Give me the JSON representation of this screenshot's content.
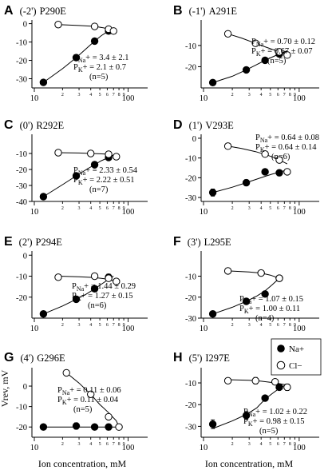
{
  "figure": {
    "xlabel": "Ion  concentration, mM",
    "ylabel": "Vrev, mV",
    "legend": [
      {
        "symbol": "filled-circle",
        "label": "Na+"
      },
      {
        "symbol": "open-circle",
        "label": "Cl−"
      }
    ]
  },
  "chart_data": [
    {
      "type": "scatter",
      "panel": "A",
      "position_label": "(-2')",
      "mutant": "P290E",
      "xscale": "log",
      "xlim": [
        10,
        100
      ],
      "ylim": [
        -35,
        2
      ],
      "yticks": [
        0,
        -10,
        -20,
        -30
      ],
      "xticks": [
        "10",
        "100"
      ],
      "y_zero_tick": true,
      "annotation": {
        "pna": "3.4 ± 2.1",
        "pk": "2.1 ± 0.7",
        "n": "(n=5)"
      },
      "series": [
        {
          "name": "Na+",
          "marker": "filled",
          "x": [
            12.5,
            28,
            44,
            62
          ],
          "y": [
            -32,
            -18.5,
            -9.5,
            -4
          ],
          "err": [
            0.8,
            1.2,
            0.8,
            0.8
          ],
          "fit": {
            "x": [
              12.5,
              20,
              28,
              36,
              44,
              52,
              62,
              70
            ],
            "y": [
              -32,
              -24.5,
              -18.5,
              -13.5,
              -9.5,
              -6.5,
              -4,
              -2.5
            ]
          }
        },
        {
          "name": "Cl−",
          "marker": "open",
          "x": [
            18,
            44,
            62,
            70
          ],
          "y": [
            -0.5,
            -1.5,
            -3,
            -4
          ],
          "err": [
            0.5,
            0.8,
            0.8,
            0.5
          ],
          "fit": {
            "x": [
              18,
              30,
              44,
              55,
              62,
              70,
              75
            ],
            "y": [
              -0.5,
              -1,
              -1.5,
              -2.3,
              -3,
              -4,
              -4.5
            ]
          }
        }
      ]
    },
    {
      "type": "scatter",
      "panel": "B",
      "position_label": "(-1')",
      "mutant": "A291E",
      "xscale": "log",
      "xlim": [
        10,
        100
      ],
      "ylim": [
        -30,
        2
      ],
      "yticks": [
        -10,
        -20
      ],
      "xticks": [
        "10",
        "100"
      ],
      "annotation": {
        "pna": "0.70 ± 0.12",
        "pk": "0.67 ± 0.07",
        "n": "(n=5)"
      },
      "series": [
        {
          "name": "Na+",
          "marker": "filled",
          "x": [
            12.5,
            28,
            44,
            62
          ],
          "y": [
            -27.5,
            -21.5,
            -17,
            -14
          ],
          "err": [
            0.8,
            0.8,
            0.8,
            0.8
          ],
          "fit": {
            "x": [
              12.5,
              20,
              28,
              36,
              44,
              52,
              62,
              75
            ],
            "y": [
              -27.5,
              -24.5,
              -21.5,
              -19,
              -17,
              -15.5,
              -14,
              -12.5
            ]
          }
        },
        {
          "name": "Cl−",
          "marker": "open",
          "x": [
            18,
            35,
            62,
            75
          ],
          "y": [
            -4.5,
            -9,
            -13,
            -14.5
          ],
          "err": [
            0.5,
            0.8,
            0.8,
            0.5
          ],
          "fit": {
            "x": [
              18,
              25,
              35,
              45,
              62,
              75
            ],
            "y": [
              -4.5,
              -6.5,
              -9,
              -10.8,
              -13,
              -14.5
            ]
          }
        }
      ]
    },
    {
      "type": "scatter",
      "panel": "C",
      "position_label": "(0')",
      "mutant": "R292E",
      "xscale": "log",
      "xlim": [
        10,
        100
      ],
      "ylim": [
        -40,
        2
      ],
      "yticks": [
        -10,
        -20,
        -30,
        -40
      ],
      "xticks": [
        "10",
        "100"
      ],
      "annotation": {
        "pna": "2.33 ± 0.54",
        "pk": "2.22 ± 0.51",
        "n": "(n=7)"
      },
      "series": [
        {
          "name": "Na+",
          "marker": "filled",
          "x": [
            12.5,
            28,
            44,
            62
          ],
          "y": [
            -37,
            -24,
            -17,
            -12.5
          ],
          "err": [
            0.5,
            0.8,
            0.8,
            0.8
          ],
          "fit": {
            "x": [
              12.5,
              20,
              28,
              36,
              44,
              52,
              62,
              70
            ],
            "y": [
              -37,
              -29.5,
              -24,
              -20,
              -17,
              -14.5,
              -12.5,
              -11
            ]
          }
        },
        {
          "name": "Cl−",
          "marker": "open",
          "x": [
            18,
            40,
            62,
            75
          ],
          "y": [
            -9.5,
            -10,
            -10.5,
            -12
          ],
          "err": [
            0.5,
            0.5,
            0.5,
            0.5
          ],
          "fit": {
            "x": [
              18,
              30,
              40,
              55,
              62,
              75
            ],
            "y": [
              -9.5,
              -9.7,
              -10,
              -10.3,
              -10.5,
              -12
            ]
          }
        }
      ]
    },
    {
      "type": "scatter",
      "panel": "D",
      "position_label": "(1')",
      "mutant": "V293E",
      "xscale": "log",
      "xlim": [
        10,
        100
      ],
      "ylim": [
        -32,
        2
      ],
      "yticks": [
        0,
        -10,
        -20,
        -30
      ],
      "xticks": [
        "10",
        "100"
      ],
      "y_zero_tick": true,
      "annotation": {
        "pna": "0.64 ± 0.08",
        "pk": "0.64 ± 0.14",
        "n": "(n=6)"
      },
      "series": [
        {
          "name": "Na+",
          "marker": "filled",
          "x": [
            12.5,
            28,
            44,
            62
          ],
          "y": [
            -27.5,
            -22.5,
            -17,
            -17.5
          ],
          "err": [
            1.8,
            1.5,
            1.2,
            1.5
          ],
          "fit": {
            "x": [
              12.5,
              20,
              28,
              36,
              44,
              52,
              62,
              75
            ],
            "y": [
              -27.5,
              -24.8,
              -22.5,
              -20.7,
              -19.3,
              -18.2,
              -17.2,
              -16
            ]
          }
        },
        {
          "name": "Cl−",
          "marker": "open",
          "x": [
            18,
            44,
            62,
            75
          ],
          "y": [
            -4,
            -8,
            -11,
            -17
          ],
          "err": [
            0.5,
            0.8,
            0.8,
            1.0
          ],
          "fit": {
            "x": [
              18,
              25,
              35,
              44,
              55,
              62,
              75
            ],
            "y": [
              -4,
              -5.2,
              -6.8,
              -8.2,
              -9.8,
              -11,
              -13
            ]
          }
        }
      ]
    },
    {
      "type": "scatter",
      "panel": "E",
      "position_label": "(2')",
      "mutant": "P294E",
      "xscale": "log",
      "xlim": [
        10,
        100
      ],
      "ylim": [
        -30,
        2
      ],
      "yticks": [
        0,
        -10,
        -20
      ],
      "xticks": [
        "10",
        "100"
      ],
      "y_zero_tick": true,
      "annotation": {
        "pna": "1.44 ± 0.29",
        "pk": "1.27 ± 0.15",
        "n": "(n=6)"
      },
      "series": [
        {
          "name": "Na+",
          "marker": "filled",
          "x": [
            12.5,
            28,
            44,
            62
          ],
          "y": [
            -28,
            -21,
            -16,
            -10.5
          ],
          "err": [
            0.8,
            0.8,
            0.8,
            1.5
          ],
          "fit": {
            "x": [
              12.5,
              20,
              28,
              36,
              44,
              52,
              62,
              70
            ],
            "y": [
              -28,
              -24.2,
              -21,
              -18.5,
              -16,
              -13.8,
              -11.5,
              -10
            ]
          }
        },
        {
          "name": "Cl−",
          "marker": "open",
          "x": [
            18,
            44,
            62,
            75
          ],
          "y": [
            -10.5,
            -10,
            -11,
            -12.5
          ],
          "err": [
            0.8,
            0.8,
            0.8,
            0.5
          ],
          "fit": {
            "x": [
              18,
              30,
              44,
              55,
              62,
              75
            ],
            "y": [
              -10,
              -10.3,
              -10.7,
              -11.2,
              -11.6,
              -12.5
            ]
          }
        }
      ]
    },
    {
      "type": "scatter",
      "panel": "F",
      "position_label": "(3')",
      "mutant": "L295E",
      "xscale": "log",
      "xlim": [
        10,
        100
      ],
      "ylim": [
        -30,
        2
      ],
      "yticks": [
        -10,
        -20,
        -30
      ],
      "xticks": [
        "10",
        "100"
      ],
      "annotation": {
        "pna": "1.07 ± 0.15",
        "pk": "1.00 ± 0.11",
        "n": "(n=4)"
      },
      "series": [
        {
          "name": "Na+",
          "marker": "filled",
          "x": [
            12.5,
            28,
            44,
            62
          ],
          "y": [
            -28,
            -22,
            -18.5,
            -11
          ],
          "err": [
            0.5,
            0.8,
            1.2,
            0.5
          ],
          "fit": {
            "x": [
              12.5,
              20,
              28,
              36,
              44,
              52,
              62
            ],
            "y": [
              -28,
              -24.8,
              -22,
              -19.5,
              -17,
              -14.2,
              -11
            ]
          }
        },
        {
          "name": "Cl−",
          "marker": "open",
          "x": [
            18,
            40,
            62
          ],
          "y": [
            -7.5,
            -8.5,
            -11
          ],
          "err": [
            0.5,
            0.5,
            0.5
          ],
          "fit": {
            "x": [
              18,
              30,
              40,
              50,
              62
            ],
            "y": [
              -7.5,
              -8,
              -8.5,
              -9.5,
              -11
            ]
          }
        }
      ]
    },
    {
      "type": "scatter",
      "panel": "G",
      "position_label": "(4')",
      "mutant": "G296E",
      "xscale": "log",
      "xlim": [
        10,
        100
      ],
      "ylim": [
        -25,
        9
      ],
      "yticks": [
        0,
        -10,
        -20
      ],
      "xticks": [
        "10",
        "100"
      ],
      "y_zero_tick": true,
      "annotation": {
        "pna": "0.11 ± 0.06",
        "pk": "0.11 ± 0.04",
        "n": "(n=5)"
      },
      "series": [
        {
          "name": "Na+",
          "marker": "filled",
          "x": [
            12.5,
            28,
            44,
            62
          ],
          "y": [
            -20,
            -19.5,
            -20,
            -20
          ],
          "err": [
            1.2,
            1.5,
            1.0,
            1.5
          ],
          "fit": {
            "x": [
              12.5,
              28,
              44,
              62,
              80
            ],
            "y": [
              -20,
              -20,
              -20,
              -20,
              -20
            ]
          }
        },
        {
          "name": "Cl−",
          "marker": "open",
          "x": [
            22,
            40,
            62,
            80
          ],
          "y": [
            6.5,
            -4,
            -15,
            -20
          ],
          "err": [
            0.8,
            0.8,
            0.8,
            0.8
          ],
          "fit": {
            "x": [
              22,
              30,
              40,
              50,
              62,
              75,
              80
            ],
            "y": [
              6.5,
              1.5,
              -4,
              -9,
              -13,
              -17,
              -20
            ]
          }
        }
      ]
    },
    {
      "type": "scatter",
      "panel": "H",
      "position_label": "(5')",
      "mutant": "I297E",
      "xscale": "log",
      "xlim": [
        10,
        100
      ],
      "ylim": [
        -35,
        -3
      ],
      "yticks": [
        -10,
        -20,
        -30
      ],
      "xticks": [
        "10",
        "100"
      ],
      "annotation": {
        "pna": "1.02 ± 0.22",
        "pk": "0.98 ± 0.15",
        "n": "(n=5)"
      },
      "series": [
        {
          "name": "Na+",
          "marker": "filled",
          "x": [
            12.5,
            28,
            44,
            62
          ],
          "y": [
            -29,
            -25,
            -17,
            -12
          ],
          "err": [
            2,
            1.8,
            1,
            1
          ],
          "fit": {
            "x": [
              12.5,
              20,
              28,
              36,
              44,
              52,
              62,
              75
            ],
            "y": [
              -31,
              -27.5,
              -24.5,
              -21.5,
              -17.5,
              -15,
              -12.5,
              -10.5
            ]
          }
        },
        {
          "name": "Cl−",
          "marker": "open",
          "x": [
            18,
            35,
            56,
            75
          ],
          "y": [
            -9,
            -9,
            -9.5,
            -12
          ],
          "err": [
            0.5,
            1.5,
            0.8,
            1.5
          ],
          "fit": {
            "x": [
              18,
              30,
              40,
              56,
              75
            ],
            "y": [
              -8.5,
              -8.8,
              -9.2,
              -10,
              -11
            ]
          }
        }
      ]
    }
  ]
}
